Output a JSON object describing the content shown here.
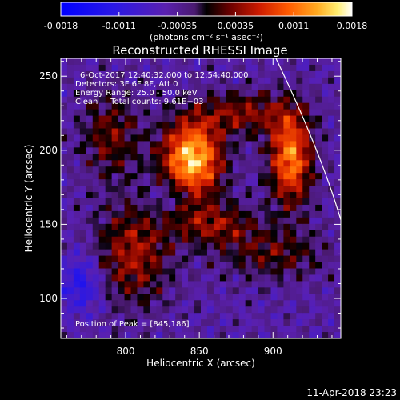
{
  "chart_data": {
    "type": "heatmap",
    "title": "Reconstructed RHESSI Image",
    "xlabel": "Heliocentric X (arcsec)",
    "ylabel": "Heliocentric Y (arcsec)",
    "xlim": [
      756,
      946
    ],
    "ylim": [
      73,
      262
    ],
    "xticks": [
      800,
      850,
      900
    ],
    "yticks": [
      100,
      150,
      200,
      250
    ],
    "colorbar": {
      "range": [
        -0.0018,
        0.0018
      ],
      "ticks": [
        "-0.0018",
        "-0.0011",
        "-0.00035",
        "0.00035",
        "0.0011",
        "0.0018"
      ],
      "unit_label": "(photons cm⁻² s⁻¹ asec⁻²)"
    },
    "annotations": [
      "6-Oct-2017 12:40:32.000 to 12:54:40.000",
      "Detectors: 3F 6F 8F, Att 0",
      "Energy Range: 25.0 - 50.0 keV",
      "Clean     Total counts: 9.61E+03"
    ],
    "peak_label": "Position of Peak = [845,186]",
    "peak": [
      845,
      186
    ],
    "sources": [
      {
        "x": 845,
        "y": 194,
        "sx": 14,
        "sy": 18,
        "amp": 1.0
      },
      {
        "x": 912,
        "y": 195,
        "sx": 10,
        "sy": 22,
        "amp": 0.8
      },
      {
        "x": 880,
        "y": 225,
        "sx": 22,
        "sy": 10,
        "amp": 0.4
      },
      {
        "x": 790,
        "y": 210,
        "sx": 14,
        "sy": 20,
        "amp": 0.35
      },
      {
        "x": 805,
        "y": 130,
        "sx": 18,
        "sy": 24,
        "amp": 0.45
      },
      {
        "x": 860,
        "y": 150,
        "sx": 20,
        "sy": 10,
        "amp": 0.4
      },
      {
        "x": 900,
        "y": 130,
        "sx": 25,
        "sy": 12,
        "amp": 0.3
      },
      {
        "x": 770,
        "y": 110,
        "sx": 10,
        "sy": 14,
        "amp": -0.4
      },
      {
        "x": 830,
        "y": 170,
        "sx": 10,
        "sy": 8,
        "amp": -0.2
      }
    ]
  },
  "footer": {
    "timestamp": "11-Apr-2018 23:23"
  },
  "colors": {
    "background": "#000000",
    "limb": "#ffffff"
  }
}
